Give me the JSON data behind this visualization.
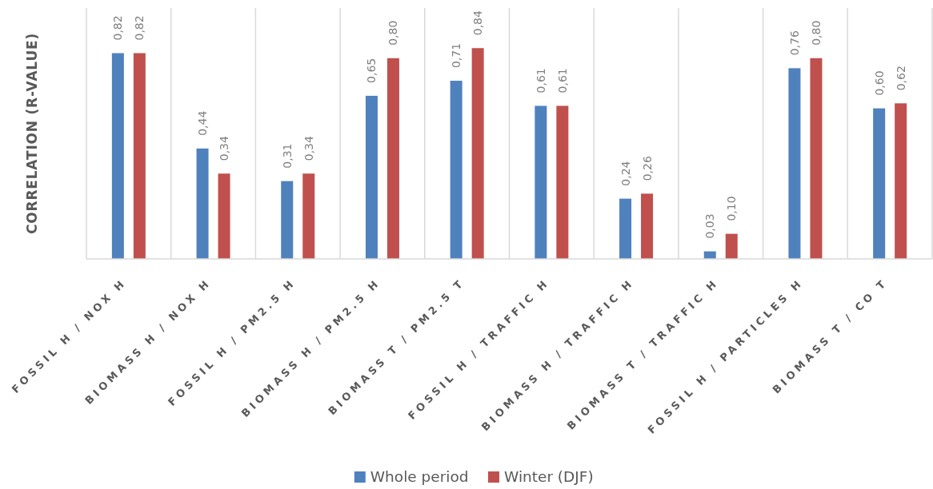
{
  "chart_data": {
    "type": "bar",
    "ylabel": "CORRELATION (R-VALUE)",
    "categories": [
      "FOSSIL H / NOX H",
      "BIOMASS H / NOX H",
      "FOSSIL H / PM2.5 H",
      "BIOMASS H / PM2.5 H",
      "BIOMASS T / PM2.5 T",
      "FOSSIL H / TRAFFIC H",
      "BIOMASS H / TRAFFIC H",
      "BIOMASS T / TRAFFIC H",
      "FOSSIL H / PARTICLES H",
      "BIOMASS T / CO T"
    ],
    "series": [
      {
        "name": "Whole period",
        "color": "#4f81bd",
        "values": [
          0.82,
          0.44,
          0.31,
          0.65,
          0.71,
          0.61,
          0.24,
          0.03,
          0.76,
          0.6
        ],
        "value_labels": [
          "0,82",
          "0,44",
          "0,31",
          "0,65",
          "0,71",
          "0,61",
          "0,24",
          "0,03",
          "0,76",
          "0,60"
        ]
      },
      {
        "name": "Winter (DJF)",
        "color": "#c0504d",
        "values": [
          0.82,
          0.34,
          0.34,
          0.8,
          0.84,
          0.61,
          0.26,
          0.1,
          0.8,
          0.62
        ],
        "value_labels": [
          "0,82",
          "0,34",
          "0,34",
          "0,80",
          "0,84",
          "0,61",
          "0,26",
          "0,10",
          "0,80",
          "0,62"
        ]
      }
    ],
    "ylim": [
      0,
      1
    ],
    "tick_labels": "x",
    "grid": "x",
    "legend": "bottom"
  }
}
